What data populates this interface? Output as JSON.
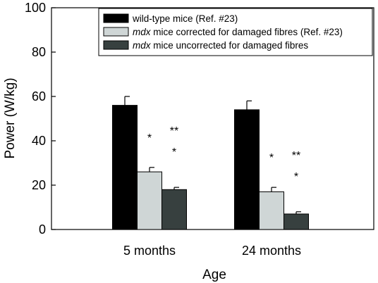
{
  "chart_data": {
    "type": "bar",
    "xlabel": "Age",
    "ylabel": "Power (W/kg)",
    "ylim": [
      0,
      100
    ],
    "yticks": [
      "0",
      "20",
      "40",
      "60",
      "80",
      "100"
    ],
    "categories": [
      "5 months",
      "24 months"
    ],
    "legend_position": "top-right",
    "series": [
      {
        "name_prefix": "",
        "name_suffix": "wild-type mice (Ref. #23)",
        "color": "#000000",
        "values": [
          56,
          54
        ],
        "errors": [
          4,
          4
        ],
        "significance": [
          "",
          ""
        ]
      },
      {
        "name_prefix": "mdx",
        "name_suffix": " mice corrected for damaged fibres (Ref. #23)",
        "color": "#cfd6d6",
        "values": [
          26,
          17
        ],
        "errors": [
          2,
          2
        ],
        "significance": [
          "*",
          "*"
        ]
      },
      {
        "name_prefix": "mdx",
        "name_suffix": " mice uncorrected for damaged fibres",
        "color": "#37403f",
        "values": [
          18,
          7
        ],
        "errors": [
          1,
          1
        ],
        "significance": [
          "**\n*",
          "**\n*"
        ]
      }
    ]
  }
}
